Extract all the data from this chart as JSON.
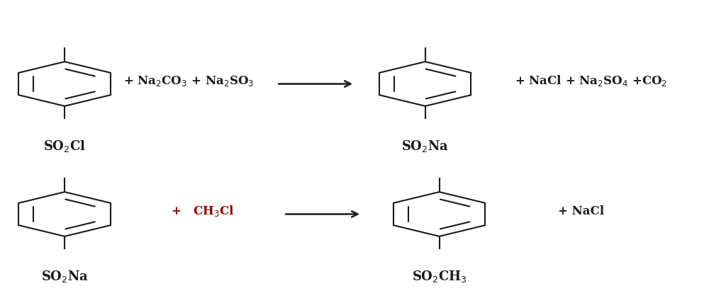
{
  "background_color": "#ffffff",
  "line_color": "#1a1a1a",
  "text_color": "#1a1a1a",
  "ch3cl_color": "#8B0000",
  "reaction1": {
    "reactant1_label": "SO$_2$Cl",
    "reagents": "+ Na$_2$CO$_3$ + Na$_2$SO$_3$",
    "product1_label": "SO$_2$Na",
    "products_right": "+ NaCl + Na$_2$SO$_4$ +CO$_2$"
  },
  "reaction2": {
    "reactant1_label": "SO$_2$Na",
    "reagent": "+   CH$_3$Cl",
    "product1_label": "SO$_2$CH$_3$",
    "products_right": "+ NaCl"
  },
  "fig_width": 10.0,
  "fig_height": 4.21
}
